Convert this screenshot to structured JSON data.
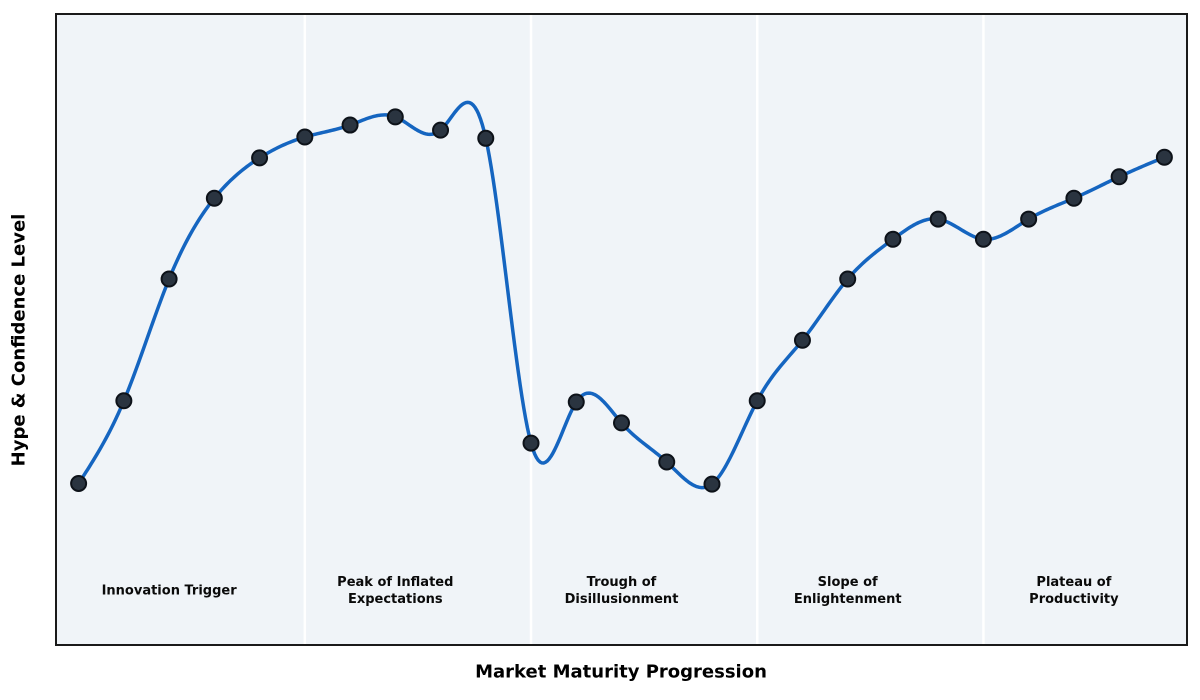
{
  "chart_data": {
    "type": "line",
    "title": "",
    "xlabel": "Market Maturity Progression",
    "ylabel": "Hype & Confidence Level",
    "x": [
      0,
      1,
      2,
      3,
      4,
      5,
      6,
      7,
      8,
      9,
      10,
      11,
      12,
      13,
      14,
      15,
      16,
      17,
      18,
      19,
      20,
      21,
      22,
      23,
      24
    ],
    "values": [
      2.56,
      3.87,
      5.8,
      7.08,
      7.72,
      8.05,
      8.24,
      8.37,
      8.16,
      8.03,
      3.2,
      3.85,
      3.52,
      2.9,
      2.55,
      3.87,
      4.83,
      5.8,
      6.43,
      6.75,
      6.43,
      6.75,
      7.08,
      7.42,
      7.73
    ],
    "xlim": [
      -0.5,
      24.5
    ],
    "ylim": [
      0,
      10
    ],
    "grid": false,
    "legend": "none",
    "axis_ticks": "none",
    "line_style": "smooth-cubic-spline",
    "markers": "filled-circle",
    "divider_x": [
      5,
      10,
      15,
      20
    ],
    "phases": [
      {
        "label": "Innovation Trigger",
        "label_x": 2
      },
      {
        "label": "Peak of Inflated\nExpectations",
        "label_x": 7
      },
      {
        "label": "Trough of\nDisillusionment",
        "label_x": 12
      },
      {
        "label": "Slope of\nEnlightenment",
        "label_x": 17
      },
      {
        "label": "Plateau of\nProductivity",
        "label_x": 22
      }
    ],
    "colors": {
      "line": "#1565c0",
      "marker_fill": "#2a3440",
      "marker_edge": "#0d1219",
      "plot_background": "#f0f4f8",
      "figure_background": "#ffffff",
      "divider": "#ffffff",
      "frame": "#1a1a1a",
      "text": "#000000"
    }
  }
}
